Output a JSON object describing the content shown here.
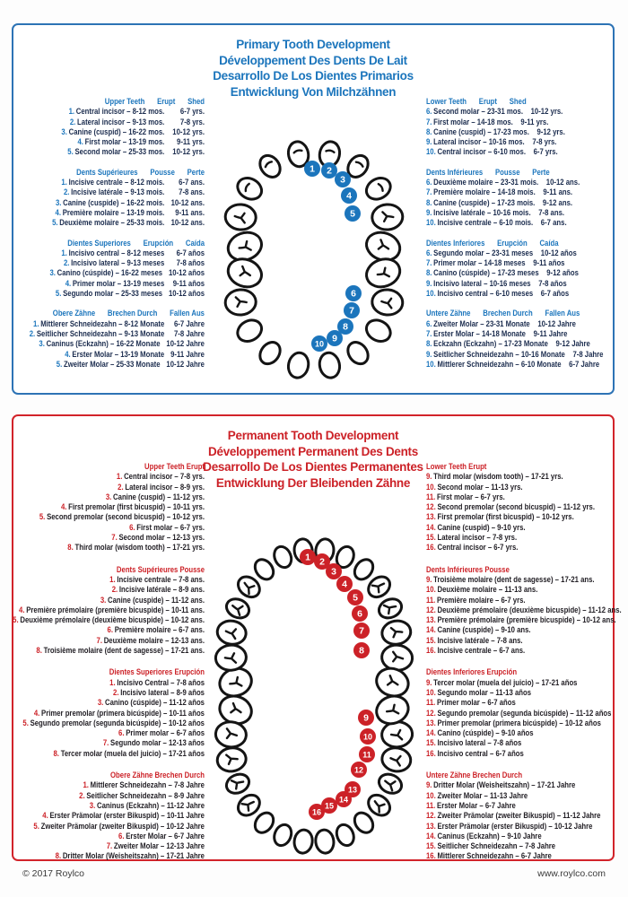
{
  "footer": {
    "copyright": "© 2017 Roylco",
    "website": "www.roylco.com"
  },
  "primary": {
    "accent": "#1b75bc",
    "title_lines": [
      "Primary Tooth Development",
      "Développement Des Dents De Lait",
      "Desarrollo De Los Dientes Primarios",
      "Entwicklung Von Milchzähnen"
    ],
    "upper_numbers": [
      "1",
      "2",
      "3",
      "4",
      "5"
    ],
    "lower_numbers": [
      "6",
      "7",
      "8",
      "9",
      "10"
    ],
    "sections_left": [
      {
        "header": [
          "Upper Teeth",
          "Erupt",
          "Shed"
        ],
        "items": [
          {
            "n": "1.",
            "text": "Central incisor – 8-12 mos.",
            "shed": "6-7 yrs."
          },
          {
            "n": "2.",
            "text": "Lateral incisor – 9-13 mos.",
            "shed": "7-8 yrs."
          },
          {
            "n": "3.",
            "text": "Canine (cuspid) – 16-22 mos.",
            "shed": "10-12 yrs."
          },
          {
            "n": "4.",
            "text": "First molar – 13-19 mos.",
            "shed": "9-11 yrs."
          },
          {
            "n": "5.",
            "text": "Second molar – 25-33 mos.",
            "shed": "10-12 yrs."
          }
        ]
      },
      {
        "header": [
          "Dents Supérieures",
          "Pousse",
          "Perte"
        ],
        "items": [
          {
            "n": "1.",
            "text": "Incisive centrale – 8-12 mois.",
            "shed": "6-7 ans."
          },
          {
            "n": "2.",
            "text": "Incisive latérale – 9-13 mois.",
            "shed": "7-8 ans."
          },
          {
            "n": "3.",
            "text": "Canine (cuspide) – 16-22 mois.",
            "shed": "10-12 ans."
          },
          {
            "n": "4.",
            "text": "Première molaire – 13-19 mois.",
            "shed": "9-11 ans."
          },
          {
            "n": "5.",
            "text": "Deuxième molaire – 25-33 mois.",
            "shed": "10-12 ans."
          }
        ]
      },
      {
        "header": [
          "Dientes Superiores",
          "Erupción",
          "Caída"
        ],
        "items": [
          {
            "n": "1.",
            "text": "Incisivo central – 8-12 meses",
            "shed": "6-7 años"
          },
          {
            "n": "2.",
            "text": "Incisivo lateral – 9-13 meses",
            "shed": "7-8 años"
          },
          {
            "n": "3.",
            "text": "Canino (cúspide) – 16-22 meses",
            "shed": "10-12 años"
          },
          {
            "n": "4.",
            "text": "Primer molar – 13-19 meses",
            "shed": "9-11 años"
          },
          {
            "n": "5.",
            "text": "Segundo molar – 25-33 meses",
            "shed": "10-12 años"
          }
        ]
      },
      {
        "header": [
          "Obere Zähne",
          "Brechen Durch",
          "Fallen Aus"
        ],
        "items": [
          {
            "n": "1.",
            "text": "Mittlerer Schneidezahn – 8-12 Monate",
            "shed": "6-7 Jahre"
          },
          {
            "n": "2.",
            "text": "Seitlicher Schneidezahn – 9-13 Monate",
            "shed": "7-8 Jahre"
          },
          {
            "n": "3.",
            "text": "Caninus (Eckzahn) – 16-22 Monate",
            "shed": "10-12 Jahre"
          },
          {
            "n": "4.",
            "text": "Erster Molar – 13-19 Monate",
            "shed": "9-11 Jahre"
          },
          {
            "n": "5.",
            "text": "Zweiter Molar – 25-33 Monate",
            "shed": "10-12 Jahre"
          }
        ]
      }
    ],
    "sections_right": [
      {
        "header": [
          "Lower Teeth",
          "Erupt",
          "Shed"
        ],
        "items": [
          {
            "n": "6.",
            "text": "Second molar – 23-31 mos.",
            "shed": "10-12 yrs."
          },
          {
            "n": "7.",
            "text": "First molar – 14-18 mos.",
            "shed": "9-11 yrs."
          },
          {
            "n": "8.",
            "text": "Canine (cuspid) – 17-23 mos.",
            "shed": "9-12 yrs."
          },
          {
            "n": "9.",
            "text": "Lateral incisor – 10-16 mos.",
            "shed": "7-8 yrs."
          },
          {
            "n": "10.",
            "text": "Central incisor – 6-10 mos.",
            "shed": "6-7 yrs."
          }
        ]
      },
      {
        "header": [
          "Dents Inférieures",
          "Pousse",
          "Perte"
        ],
        "items": [
          {
            "n": "6.",
            "text": "Deuxième molaire – 23-31 mois.",
            "shed": "10-12 ans."
          },
          {
            "n": "7.",
            "text": "Première molaire – 14-18 mois.",
            "shed": "9-11 ans."
          },
          {
            "n": "8.",
            "text": "Canine (cuspide) – 17-23 mois.",
            "shed": "9-12 ans."
          },
          {
            "n": "9.",
            "text": "Incisive latérale – 10-16 mois.",
            "shed": "7-8 ans."
          },
          {
            "n": "10.",
            "text": "Incisive centrale – 6-10 mois.",
            "shed": "6-7 ans."
          }
        ]
      },
      {
        "header": [
          "Dientes Inferiores",
          "Erupción",
          "Caída"
        ],
        "items": [
          {
            "n": "6.",
            "text": "Segundo molar – 23-31 meses",
            "shed": "10-12 años"
          },
          {
            "n": "7.",
            "text": "Primer molar – 14-18 meses",
            "shed": "9-11 años"
          },
          {
            "n": "8.",
            "text": "Canino (cúspide) – 17-23 meses",
            "shed": "9-12 años"
          },
          {
            "n": "9.",
            "text": "Incisivo lateral – 10-16 meses",
            "shed": "7-8 años"
          },
          {
            "n": "10.",
            "text": "Incisivo central – 6-10 meses",
            "shed": "6-7 años"
          }
        ]
      },
      {
        "header": [
          "Untere Zähne",
          "Brechen Durch",
          "Fallen Aus"
        ],
        "items": [
          {
            "n": "6.",
            "text": "Zweiter Molar – 23-31 Monate",
            "shed": "10-12 Jahre"
          },
          {
            "n": "7.",
            "text": "Erster Molar – 14-18 Monate",
            "shed": "9-11 Jahre"
          },
          {
            "n": "8.",
            "text": "Eckzahn (Eckzahn) – 17-23 Monate",
            "shed": "9-12 Jahre"
          },
          {
            "n": "9.",
            "text": "Seitlicher Schneidezahn – 10-16 Monate",
            "shed": "7-8 Jahre"
          },
          {
            "n": "10.",
            "text": "Mittlerer Schneidezahn – 6-10 Monate",
            "shed": "6-7 Jahre"
          }
        ]
      }
    ]
  },
  "permanent": {
    "accent": "#cc2127",
    "title_lines": [
      "Permanent Tooth Development",
      "Développement Permanent Des Dents",
      "Desarrollo De Los Dientes Permanentes",
      "Entwicklung Der Bleibenden Zähne"
    ],
    "upper_numbers": [
      "1",
      "2",
      "3",
      "4",
      "5",
      "6",
      "7",
      "8"
    ],
    "lower_numbers": [
      "9",
      "10",
      "11",
      "12",
      "13",
      "14",
      "15",
      "16"
    ],
    "sections_left": [
      {
        "header": [
          "Upper Teeth Erupt"
        ],
        "items": [
          {
            "n": "1.",
            "text": "Central incisor – 7-8 yrs."
          },
          {
            "n": "2.",
            "text": "Lateral incisor – 8-9 yrs."
          },
          {
            "n": "3.",
            "text": "Canine (cuspid) – 11-12 yrs."
          },
          {
            "n": "4.",
            "text": "First premolar (first bicuspid) – 10-11 yrs."
          },
          {
            "n": "5.",
            "text": "Second premolar (second bicuspid) – 10-12 yrs."
          },
          {
            "n": "6.",
            "text": "First molar – 6-7 yrs."
          },
          {
            "n": "7.",
            "text": "Second molar – 12-13 yrs."
          },
          {
            "n": "8.",
            "text": "Third molar (wisdom tooth) – 17-21 yrs."
          }
        ]
      },
      {
        "header": [
          "Dents Supérieures Pousse"
        ],
        "items": [
          {
            "n": "1.",
            "text": "Incisive centrale – 7-8 ans."
          },
          {
            "n": "2.",
            "text": "Incisive latérale – 8-9 ans."
          },
          {
            "n": "3.",
            "text": "Canine (cuspide) – 11-12 ans."
          },
          {
            "n": "4.",
            "text": "Première prémolaire (première bicuspide) – 10-11 ans."
          },
          {
            "n": "5.",
            "text": "Deuxième prémolaire (deuxième bicuspide) – 10-12 ans."
          },
          {
            "n": "6.",
            "text": "Première molaire – 6-7 ans."
          },
          {
            "n": "7.",
            "text": "Deuxième molaire – 12-13 ans."
          },
          {
            "n": "8.",
            "text": "Troisième molaire (dent de sagesse) – 17-21 ans."
          }
        ]
      },
      {
        "header": [
          "Dientes Superiores Erupción"
        ],
        "items": [
          {
            "n": "1.",
            "text": "Incisivo Central – 7-8 años"
          },
          {
            "n": "2.",
            "text": "Incisivo lateral – 8-9 años"
          },
          {
            "n": "3.",
            "text": "Canino (cúspide) – 11-12 años"
          },
          {
            "n": "4.",
            "text": "Primer premolar (primera bicúspide) – 10-11 años"
          },
          {
            "n": "5.",
            "text": "Segundo premolar (segunda bicúspide) – 10-12 años"
          },
          {
            "n": "6.",
            "text": "Primer molar – 6-7 años"
          },
          {
            "n": "7.",
            "text": "Segundo molar – 12-13 años"
          },
          {
            "n": "8.",
            "text": "Tercer molar (muela del juicio) – 17-21 años"
          }
        ]
      },
      {
        "header": [
          "Obere Zähne Brechen Durch"
        ],
        "items": [
          {
            "n": "1.",
            "text": "Mittlerer Schneidezahn – 7-8 Jahre"
          },
          {
            "n": "2.",
            "text": "Seitlicher Schneidezahn – 8-9 Jahre"
          },
          {
            "n": "3.",
            "text": "Caninus (Eckzahn) – 11-12 Jahre"
          },
          {
            "n": "4.",
            "text": "Erster Prämolar (erster Bikuspid) – 10-11 Jahre"
          },
          {
            "n": "5.",
            "text": "Zweiter Prämolar (zweiter Bikuspid) – 10-12 Jahre"
          },
          {
            "n": "6.",
            "text": "Erster Molar – 6-7 Jahre"
          },
          {
            "n": "7.",
            "text": "Zweiter Molar – 12-13 Jahre"
          },
          {
            "n": "8.",
            "text": "Dritter Molar (Weisheitszahn) – 17-21 Jahre"
          }
        ]
      }
    ],
    "sections_right": [
      {
        "header": [
          "Lower Teeth Erupt"
        ],
        "items": [
          {
            "n": "9.",
            "text": "Third molar (wisdom tooth) – 17-21 yrs."
          },
          {
            "n": "10.",
            "text": "Second molar – 11-13 yrs."
          },
          {
            "n": "11.",
            "text": "First molar – 6-7 yrs."
          },
          {
            "n": "12.",
            "text": "Second premolar (second bicuspid) – 11-12 yrs."
          },
          {
            "n": "13.",
            "text": "First premolar (first bicuspid) – 10-12 yrs."
          },
          {
            "n": "14.",
            "text": "Canine (cuspid) – 9-10 yrs."
          },
          {
            "n": "15.",
            "text": "Lateral incisor – 7-8 yrs."
          },
          {
            "n": "16.",
            "text": "Central incisor – 6-7 yrs."
          }
        ]
      },
      {
        "header": [
          "Dents Inférieures Pousse"
        ],
        "items": [
          {
            "n": "9.",
            "text": "Troisième molaire (dent de sagesse) – 17-21 ans."
          },
          {
            "n": "10.",
            "text": "Deuxième molaire – 11-13 ans."
          },
          {
            "n": "11.",
            "text": "Première molaire – 6-7 yrs."
          },
          {
            "n": "12.",
            "text": "Deuxième prémolaire (deuxième bicuspide) – 11-12 ans."
          },
          {
            "n": "13.",
            "text": "Première prémolaire (première bicuspide) – 10-12 ans."
          },
          {
            "n": "14.",
            "text": "Canine (cuspide) – 9-10 ans."
          },
          {
            "n": "15.",
            "text": "Incisive latérale – 7-8 ans."
          },
          {
            "n": "16.",
            "text": "Incisive centrale – 6-7 ans."
          }
        ]
      },
      {
        "header": [
          "Dientes Inferiores Erupción"
        ],
        "items": [
          {
            "n": "9.",
            "text": "Tercer molar (muela del juicio) – 17-21 años"
          },
          {
            "n": "10.",
            "text": "Segundo molar – 11-13 años"
          },
          {
            "n": "11.",
            "text": "Primer molar – 6-7 años"
          },
          {
            "n": "12.",
            "text": "Segundo premolar (segunda bicúspide) – 11-12 años"
          },
          {
            "n": "13.",
            "text": "Primer premolar (primera bicúspide) – 10-12 años"
          },
          {
            "n": "14.",
            "text": "Canino (cúspide) – 9-10 años"
          },
          {
            "n": "15.",
            "text": "Incisivo lateral – 7-8 años"
          },
          {
            "n": "16.",
            "text": "Incisivo central – 6-7 años"
          }
        ]
      },
      {
        "header": [
          "Untere Zähne Brechen Durch"
        ],
        "items": [
          {
            "n": "9.",
            "text": "Dritter Molar (Weisheitszahn) – 17-21 Jahre"
          },
          {
            "n": "10.",
            "text": "Zweiter Molar – 11-13 Jahre"
          },
          {
            "n": "11.",
            "text": "Erster Molar – 6-7 Jahre"
          },
          {
            "n": "12.",
            "text": "Zweiter Prämolar (zweiter Bikuspid) – 11-12 Jahre"
          },
          {
            "n": "13.",
            "text": "Erster Prämolar (erster Bikuspid) – 10-12 Jahre"
          },
          {
            "n": "14.",
            "text": "Caninus (Eckzahn) – 9-10 Jahre"
          },
          {
            "n": "15.",
            "text": "Seitlicher Schneidezahn – 7-8 Jahre"
          },
          {
            "n": "16.",
            "text": "Mittlerer Schneidezahn – 6-7 Jahre"
          }
        ]
      }
    ]
  }
}
